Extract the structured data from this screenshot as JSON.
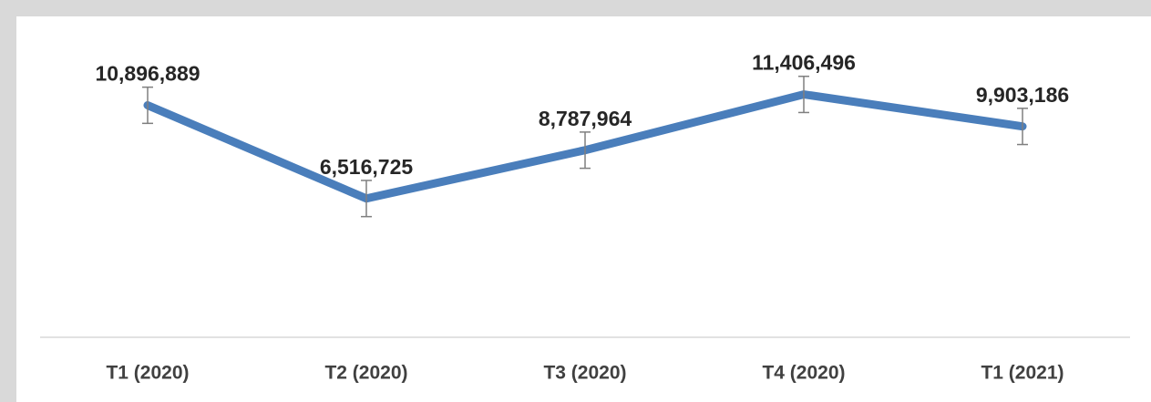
{
  "chart_data": {
    "type": "line",
    "categories": [
      "T1 (2020)",
      "T2 (2020)",
      "T3 (2020)",
      "T4 (2020)",
      "T1 (2021)"
    ],
    "values": [
      10896889,
      6516725,
      8787964,
      11406496,
      9903186
    ],
    "value_labels": [
      "10,896,889",
      "6,516,725",
      "8,787,964",
      "11,406,496",
      "9,903,186"
    ],
    "errors": [
      850000,
      850000,
      850000,
      850000,
      850000
    ],
    "color": "#4a7ebb",
    "error_color": "#7f7f7f",
    "ylim": [
      0,
      14000000
    ]
  }
}
